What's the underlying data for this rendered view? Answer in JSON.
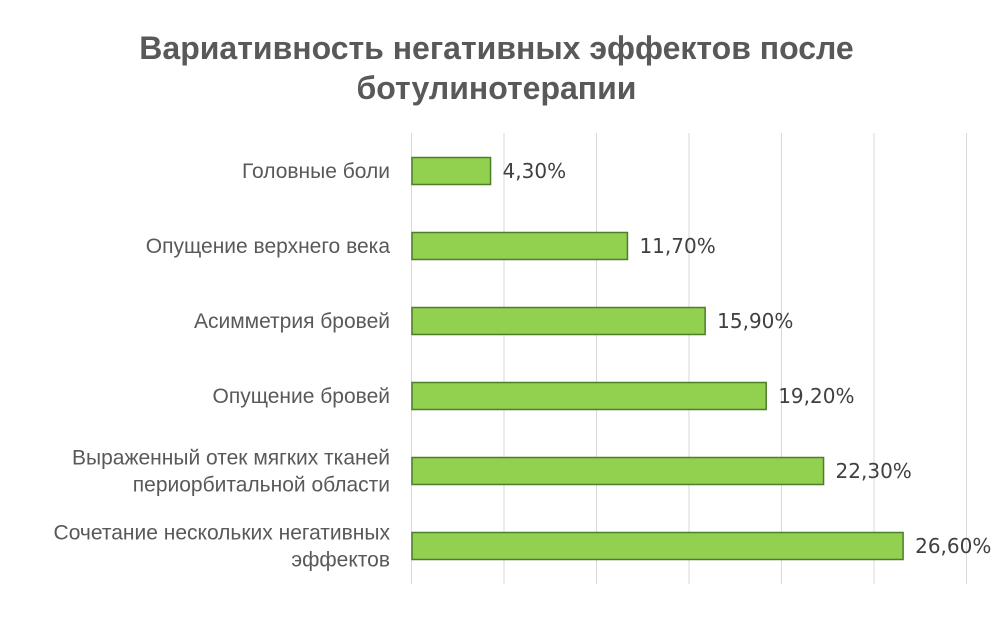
{
  "chart_data": {
    "type": "bar",
    "orientation": "horizontal",
    "title_lines": [
      "Вариативность негативных эффектов после",
      "ботулинотерапии"
    ],
    "categories": [
      [
        "Головные боли"
      ],
      [
        "Опущение верхнего века"
      ],
      [
        "Асимметрия бровей"
      ],
      [
        "Опущение бровей"
      ],
      [
        "Выраженный отек мягких тканей",
        "периорбитальной области"
      ],
      [
        "Сочетание нескольких негативных",
        "эффектов"
      ]
    ],
    "values": [
      4.3,
      11.7,
      15.9,
      19.2,
      22.3,
      26.6
    ],
    "value_labels": [
      "4,30%",
      "11,70%",
      "15,90%",
      "19,20%",
      "22,30%",
      "26,60%"
    ],
    "xlim": [
      0,
      30
    ],
    "grid": true,
    "legend": "none",
    "colors": {
      "bar_fill": "#92d050",
      "bar_stroke": "#4e7d2b",
      "grid": "#d9d9d9"
    }
  }
}
